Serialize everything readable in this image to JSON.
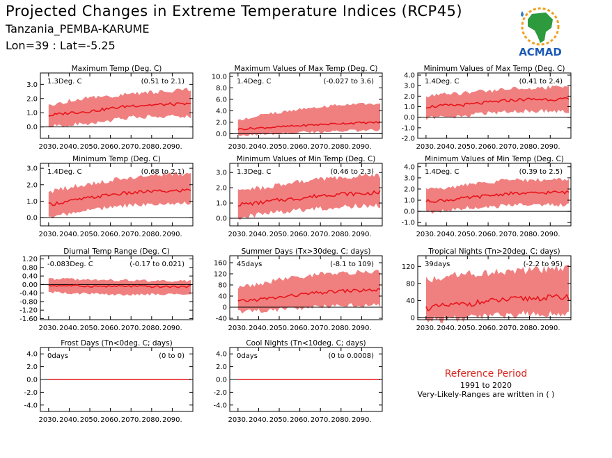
{
  "header": {
    "title": "Projected Changes in Extreme Temperature Indices (RCP45)",
    "subtitle": "Tanzania_PEMBA-KARUME",
    "coords": "Lon=39 : Lat=-5.25"
  },
  "logo": {
    "text": "ACMAD",
    "icon": "africa-map-logo"
  },
  "reference": {
    "label": "Reference Period",
    "years": "1991 to 2020",
    "note": "Very-Likely-Ranges are written in ( )"
  },
  "colors": {
    "band": "#f08080",
    "line": "#e8141b",
    "zero": "#000000"
  },
  "chart_data": [
    {
      "type": "area",
      "title": "Maximum Temp (Deg. C)",
      "change": "1.3Deg. C",
      "range": "(0.51 to 2.1)",
      "xlim": [
        2026,
        2100
      ],
      "ylim": [
        -0.8,
        3.8
      ],
      "yticks": [
        0,
        1,
        2,
        3
      ],
      "ytick_labels": [
        "0.0",
        "1.0",
        "2.0",
        "3.0"
      ],
      "xtick_labels": [
        "2030.",
        "2040.",
        "2050.",
        "2060.",
        "2070.",
        "2080.",
        "2090."
      ],
      "x": [
        2030,
        2040,
        2050,
        2060,
        2070,
        2080,
        2090,
        2099
      ],
      "series": [
        {
          "values": [
            0.8,
            1.0,
            1.1,
            1.3,
            1.5,
            1.55,
            1.6,
            1.6
          ],
          "lower": [
            0.2,
            0.3,
            0.4,
            0.6,
            0.8,
            0.9,
            0.9,
            0.9
          ],
          "upper": [
            1.4,
            1.7,
            1.9,
            2.0,
            2.2,
            2.3,
            2.4,
            2.5
          ]
        }
      ]
    },
    {
      "type": "area",
      "title": "Maximum Values of Max Temp (Deg. C)",
      "change": "1.4Deg. C",
      "range": "(-0.027 to 3.6)",
      "xlim": [
        2026,
        2100
      ],
      "ylim": [
        -0.8,
        10.6
      ],
      "yticks": [
        0,
        2,
        4,
        6,
        8,
        10
      ],
      "ytick_labels": [
        "0.0",
        "2.0",
        "4.0",
        "6.0",
        "8.0",
        "10.0"
      ],
      "xtick_labels": [
        "2030.",
        "2040.",
        "2050.",
        "2060.",
        "2070.",
        "2080.",
        "2090."
      ],
      "x": [
        2030,
        2040,
        2050,
        2060,
        2070,
        2080,
        2090,
        2099
      ],
      "series": [
        {
          "values": [
            0.8,
            1.0,
            1.2,
            1.4,
            1.6,
            1.8,
            1.9,
            2.0
          ],
          "lower": [
            0.0,
            0.1,
            0.3,
            0.5,
            0.6,
            0.7,
            0.8,
            0.9
          ],
          "upper": [
            2.0,
            3.0,
            3.5,
            4.0,
            4.5,
            4.8,
            5.0,
            5.0
          ]
        }
      ]
    },
    {
      "type": "area",
      "title": "Minimum Values of Max Temp (Deg. C)",
      "change": "1.4Deg. C",
      "range": "(0.41 to 2.4)",
      "xlim": [
        2026,
        2100
      ],
      "ylim": [
        -2.0,
        4.2
      ],
      "yticks": [
        -2,
        -1,
        0,
        1,
        2,
        3,
        4
      ],
      "ytick_labels": [
        "-2.0",
        "-1.0",
        "0.0",
        "1.0",
        "2.0",
        "3.0",
        "4.0"
      ],
      "xtick_labels": [
        "2030.",
        "2040.",
        "2050.",
        "2060.",
        "2070.",
        "2080.",
        "2090."
      ],
      "x": [
        2030,
        2040,
        2050,
        2060,
        2070,
        2080,
        2090,
        2099
      ],
      "series": [
        {
          "values": [
            1.0,
            1.1,
            1.2,
            1.4,
            1.6,
            1.7,
            1.7,
            1.7
          ],
          "lower": [
            0.1,
            0.2,
            0.4,
            0.6,
            0.7,
            0.8,
            0.8,
            0.8
          ],
          "upper": [
            1.8,
            2.0,
            2.1,
            2.3,
            2.5,
            2.6,
            2.6,
            2.7
          ]
        }
      ]
    },
    {
      "type": "area",
      "title": "Minimum Temp (Deg. C)",
      "change": "1.4Deg. C",
      "range": "(0.68 to 2.1)",
      "xlim": [
        2026,
        2100
      ],
      "ylim": [
        -0.5,
        3.3
      ],
      "yticks": [
        0,
        1,
        2,
        3
      ],
      "ytick_labels": [
        "0.0",
        "1.0",
        "2.0",
        "3.0"
      ],
      "xtick_labels": [
        "2030.",
        "2040.",
        "2050.",
        "2060.",
        "2070.",
        "2080.",
        "2090."
      ],
      "x": [
        2030,
        2040,
        2050,
        2060,
        2070,
        2080,
        2090,
        2099
      ],
      "series": [
        {
          "values": [
            0.8,
            1.0,
            1.2,
            1.4,
            1.5,
            1.6,
            1.6,
            1.7
          ],
          "lower": [
            0.2,
            0.4,
            0.6,
            0.8,
            0.9,
            1.0,
            1.0,
            1.0
          ],
          "upper": [
            1.4,
            1.7,
            1.9,
            2.1,
            2.3,
            2.4,
            2.5,
            2.5
          ]
        }
      ]
    },
    {
      "type": "area",
      "title": "Minimum Values of Min Temp (Deg. C)",
      "change": "1.3Deg. C",
      "range": "(0.46 to 2.3)",
      "xlim": [
        2026,
        2100
      ],
      "ylim": [
        -0.5,
        3.6
      ],
      "yticks": [
        0,
        1,
        2,
        3
      ],
      "ytick_labels": [
        "0.0",
        "1.0",
        "2.0",
        "3.0"
      ],
      "xtick_labels": [
        "2030.",
        "2040.",
        "2050.",
        "2060.",
        "2070.",
        "2080.",
        "2090."
      ],
      "x": [
        2030,
        2040,
        2050,
        2060,
        2070,
        2080,
        2090,
        2099
      ],
      "series": [
        {
          "values": [
            0.9,
            1.0,
            1.2,
            1.3,
            1.5,
            1.6,
            1.6,
            1.7
          ],
          "lower": [
            0.2,
            0.4,
            0.6,
            0.7,
            0.8,
            0.9,
            1.0,
            1.0
          ],
          "upper": [
            1.6,
            1.8,
            2.0,
            2.2,
            2.4,
            2.5,
            2.6,
            2.6
          ]
        }
      ]
    },
    {
      "type": "area",
      "title": "Minimum Values of Min Temp (Deg. C)",
      "change": "1.4Deg. C",
      "range": "(0.39 to 2.5)",
      "xlim": [
        2026,
        2100
      ],
      "ylim": [
        -1.3,
        4.3
      ],
      "yticks": [
        -1,
        0,
        1,
        2,
        3,
        4
      ],
      "ytick_labels": [
        "-1.0",
        "0.0",
        "1.0",
        "2.0",
        "3.0",
        "4.0"
      ],
      "xtick_labels": [
        "2030.",
        "2040.",
        "2050.",
        "2060.",
        "2070.",
        "2080.",
        "2090."
      ],
      "x": [
        2030,
        2040,
        2050,
        2060,
        2070,
        2080,
        2090,
        2099
      ],
      "series": [
        {
          "values": [
            0.9,
            1.0,
            1.2,
            1.4,
            1.6,
            1.6,
            1.7,
            1.7
          ],
          "lower": [
            0.1,
            0.3,
            0.5,
            0.6,
            0.7,
            0.8,
            0.8,
            0.8
          ],
          "upper": [
            1.7,
            1.9,
            2.2,
            2.4,
            2.6,
            2.6,
            2.7,
            2.7
          ]
        }
      ]
    },
    {
      "type": "area",
      "title": "Diurnal Temp Range (Deg. C)",
      "change": "-0.083Deg. C",
      "range": "(-0.17 to 0.021)",
      "xlim": [
        2026,
        2100
      ],
      "ylim": [
        -1.65,
        1.35
      ],
      "yticks": [
        -1.6,
        -1.2,
        -0.8,
        -0.4,
        0,
        0.4,
        0.8,
        1.2
      ],
      "ytick_labels": [
        "-1.60",
        "-1.20",
        "-0.80",
        "-0.40",
        "0.00",
        "0.40",
        "0.80",
        "1.20"
      ],
      "xtick_labels": [
        "2030.",
        "2040.",
        "2050.",
        "2060.",
        "2070.",
        "2080.",
        "2090."
      ],
      "x": [
        2030,
        2040,
        2050,
        2060,
        2070,
        2080,
        2090,
        2099
      ],
      "series": [
        {
          "values": [
            -0.05,
            -0.05,
            -0.08,
            -0.08,
            -0.08,
            -0.1,
            -0.1,
            -0.1
          ],
          "lower": [
            -0.3,
            -0.35,
            -0.35,
            -0.4,
            -0.4,
            -0.4,
            -0.4,
            -0.4
          ],
          "upper": [
            0.2,
            0.2,
            0.15,
            0.15,
            0.15,
            0.1,
            0.1,
            0.1
          ]
        }
      ]
    },
    {
      "type": "area",
      "title": "Summer Days (Tx>30deg. C; days)",
      "change": "45days",
      "range": "(-8.1 to 109)",
      "xlim": [
        2026,
        2100
      ],
      "ylim": [
        -45,
        185
      ],
      "yticks": [
        -40,
        0,
        40,
        80,
        120,
        160
      ],
      "ytick_labels": [
        "-40",
        "0",
        "40",
        "80",
        "120",
        "160"
      ],
      "xtick_labels": [
        "2030.",
        "2040.",
        "2050.",
        "2060.",
        "2070.",
        "2080.",
        "2090."
      ],
      "x": [
        2030,
        2040,
        2050,
        2060,
        2070,
        2080,
        2090,
        2099
      ],
      "series": [
        {
          "values": [
            20,
            28,
            35,
            45,
            52,
            58,
            60,
            62
          ],
          "lower": [
            -10,
            -5,
            0,
            5,
            10,
            15,
            15,
            15
          ],
          "upper": [
            60,
            75,
            90,
            100,
            110,
            115,
            118,
            120
          ]
        }
      ]
    },
    {
      "type": "area",
      "title": "Tropical Nights (Tn>20deg. C; days)",
      "change": "39days",
      "range": "(-2.2 to 95)",
      "xlim": [
        2026,
        2100
      ],
      "ylim": [
        -5,
        145
      ],
      "yticks": [
        0,
        40,
        80,
        120
      ],
      "ytick_labels": [
        "0",
        "40",
        "80",
        "120"
      ],
      "xtick_labels": [
        "2030.",
        "2040.",
        "2050.",
        "2060.",
        "2070.",
        "2080.",
        "2090."
      ],
      "x": [
        2030,
        2040,
        2050,
        2060,
        2070,
        2080,
        2090,
        2099
      ],
      "series": [
        {
          "values": [
            22,
            28,
            32,
            38,
            42,
            45,
            47,
            48
          ],
          "lower": [
            3,
            5,
            8,
            12,
            15,
            18,
            18,
            18
          ],
          "upper": [
            80,
            88,
            92,
            96,
            100,
            102,
            104,
            105
          ]
        }
      ]
    },
    {
      "type": "area",
      "title": "Frost Days (Tn<0deg. C; days)",
      "change": "0days",
      "range": "(0 to 0)",
      "xlim": [
        2026,
        2100
      ],
      "ylim": [
        -5,
        5
      ],
      "yticks": [
        -4,
        -2,
        0,
        2,
        4
      ],
      "ytick_labels": [
        "-4.0",
        "-2.0",
        "0.0",
        "2.0",
        "4.0"
      ],
      "xtick_labels": [
        "2030.",
        "2040.",
        "2050.",
        "2060.",
        "2070.",
        "2080.",
        "2090."
      ],
      "x": [
        2030,
        2099
      ],
      "series": [
        {
          "values": [
            0,
            0
          ],
          "lower": [
            0,
            0
          ],
          "upper": [
            0,
            0
          ]
        }
      ]
    },
    {
      "type": "area",
      "title": "Cool Nights (Tn<10deg. C; days)",
      "change": "0days",
      "range": "(0 to 0.0008)",
      "xlim": [
        2026,
        2100
      ],
      "ylim": [
        -5,
        5
      ],
      "yticks": [
        -4,
        -2,
        0,
        2,
        4
      ],
      "ytick_labels": [
        "-4.0",
        "-2.0",
        "0.0",
        "2.0",
        "4.0"
      ],
      "xtick_labels": [
        "2030.",
        "2040.",
        "2050.",
        "2060.",
        "2070.",
        "2080.",
        "2090."
      ],
      "x": [
        2030,
        2099
      ],
      "series": [
        {
          "values": [
            0,
            0
          ],
          "lower": [
            0,
            0
          ],
          "upper": [
            0,
            0
          ]
        }
      ]
    }
  ]
}
